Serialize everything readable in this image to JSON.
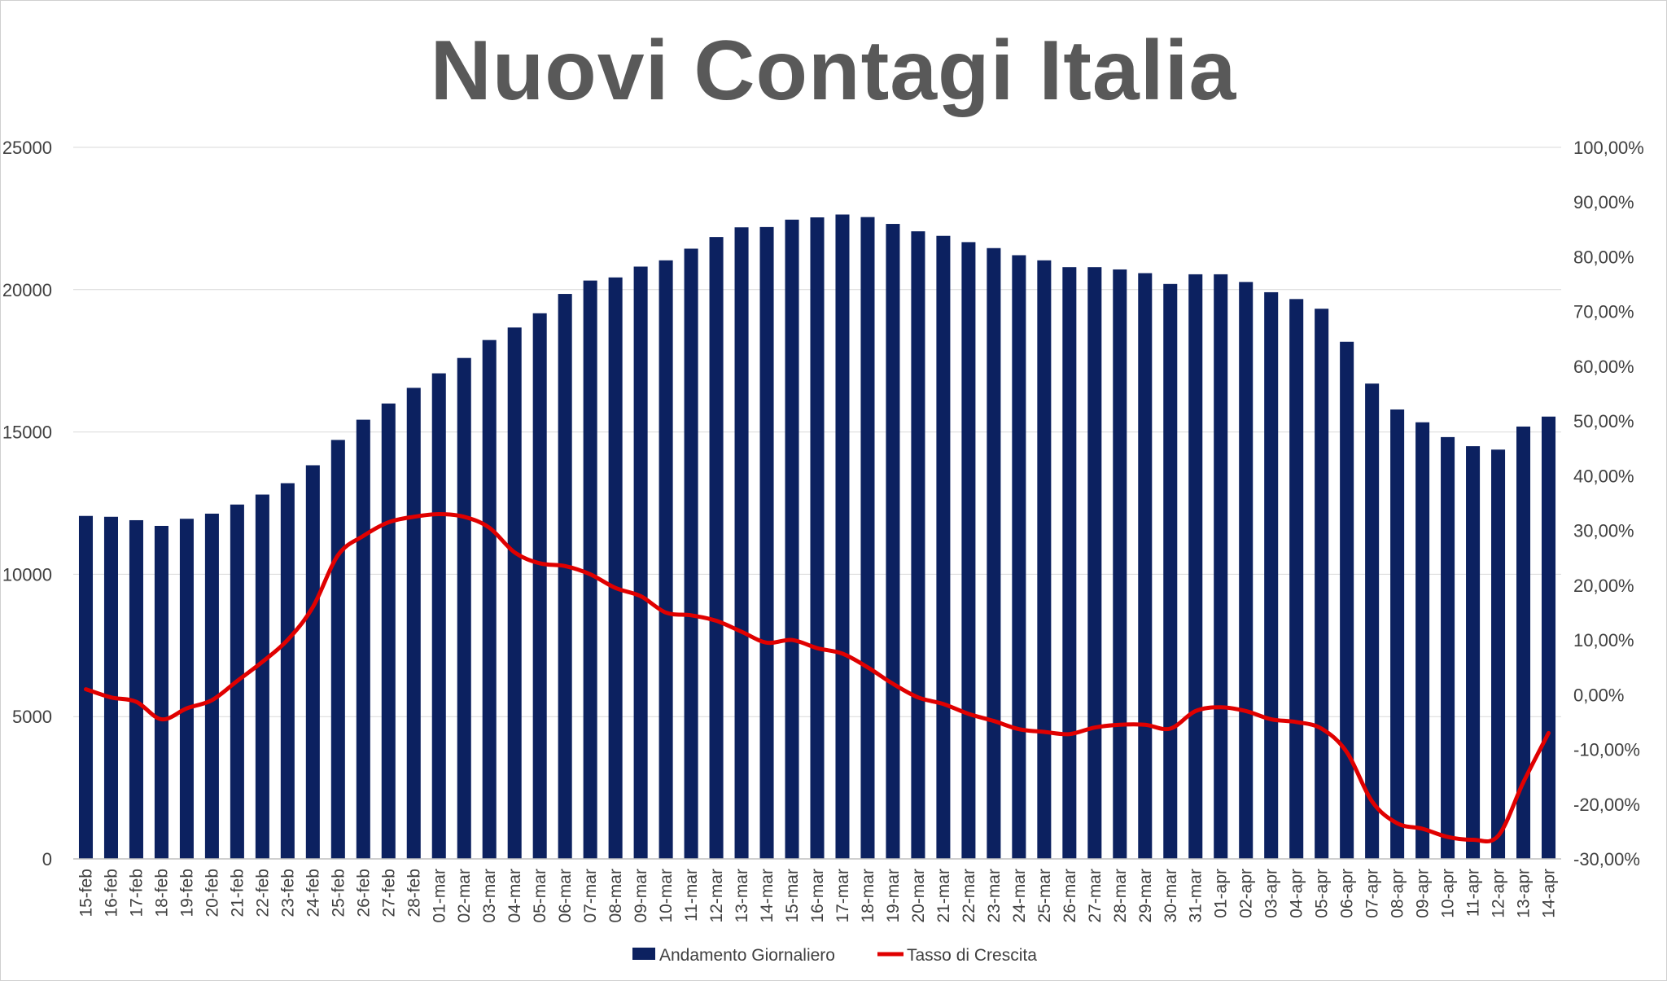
{
  "chart_data": {
    "type": "bar",
    "title": "Nuovi Contagi Italia",
    "categories": [
      "15-feb",
      "16-feb",
      "17-feb",
      "18-feb",
      "19-feb",
      "20-feb",
      "21-feb",
      "22-feb",
      "23-feb",
      "24-feb",
      "25-feb",
      "26-feb",
      "27-feb",
      "28-feb",
      "01-mar",
      "02-mar",
      "03-mar",
      "04-mar",
      "05-mar",
      "06-mar",
      "07-mar",
      "08-mar",
      "09-mar",
      "10-mar",
      "11-mar",
      "12-mar",
      "13-mar",
      "14-mar",
      "15-mar",
      "16-mar",
      "17-mar",
      "18-mar",
      "19-mar",
      "20-mar",
      "21-mar",
      "22-mar",
      "23-mar",
      "24-mar",
      "25-mar",
      "26-mar",
      "27-mar",
      "28-mar",
      "29-mar",
      "30-mar",
      "31-mar",
      "01-apr",
      "02-apr",
      "03-apr",
      "04-apr",
      "05-apr",
      "06-apr",
      "07-apr",
      "08-apr",
      "09-apr",
      "10-apr",
      "11-apr",
      "12-apr",
      "13-apr",
      "14-apr"
    ],
    "series": [
      {
        "name": "Andamento Giornaliero",
        "type": "bar",
        "axis": "left",
        "color": "#0c2160",
        "values": [
          12050,
          12020,
          11900,
          11700,
          11950,
          12130,
          12450,
          12800,
          13200,
          13830,
          14720,
          15430,
          16000,
          16550,
          17060,
          17600,
          18230,
          18670,
          19170,
          19850,
          20320,
          20430,
          20810,
          21030,
          21440,
          21850,
          22190,
          22200,
          22460,
          22540,
          22640,
          22550,
          22310,
          22050,
          21890,
          21670,
          21460,
          21210,
          21030,
          20790,
          20790,
          20710,
          20580,
          20200,
          20540,
          20540,
          20270,
          19910,
          19670,
          19330,
          18170,
          16700,
          15790,
          15340,
          14820,
          14500,
          14380,
          15190,
          15540
        ]
      },
      {
        "name": "Tasso di Crescita",
        "type": "line",
        "axis": "right",
        "color": "#e00000",
        "values": [
          0.01,
          -0.005,
          -0.013,
          -0.045,
          -0.025,
          -0.01,
          0.025,
          0.06,
          0.1,
          0.16,
          0.255,
          0.29,
          0.315,
          0.325,
          0.33,
          0.325,
          0.305,
          0.26,
          0.24,
          0.235,
          0.22,
          0.195,
          0.18,
          0.15,
          0.145,
          0.135,
          0.115,
          0.095,
          0.1,
          0.085,
          0.075,
          0.05,
          0.02,
          -0.005,
          -0.017,
          -0.035,
          -0.048,
          -0.063,
          -0.068,
          -0.072,
          -0.06,
          -0.055,
          -0.055,
          -0.062,
          -0.03,
          -0.023,
          -0.03,
          -0.045,
          -0.05,
          -0.062,
          -0.105,
          -0.195,
          -0.235,
          -0.245,
          -0.26,
          -0.265,
          -0.258,
          -0.16,
          -0.07
        ]
      }
    ],
    "y_left": {
      "min": 0,
      "max": 25000,
      "ticks": [
        "0",
        "5000",
        "10000",
        "15000",
        "20000",
        "25000"
      ]
    },
    "y_right": {
      "min": -0.3,
      "max": 1.0,
      "ticks": [
        "-30,00%",
        "-20,00%",
        "-10,00%",
        "0,00%",
        "10,00%",
        "20,00%",
        "30,00%",
        "40,00%",
        "50,00%",
        "60,00%",
        "70,00%",
        "80,00%",
        "90,00%",
        "100,00%"
      ]
    },
    "grid": true,
    "legend": {
      "position": "bottom",
      "items": [
        "Andamento Giornaliero",
        "Tasso di Crescita"
      ]
    }
  }
}
